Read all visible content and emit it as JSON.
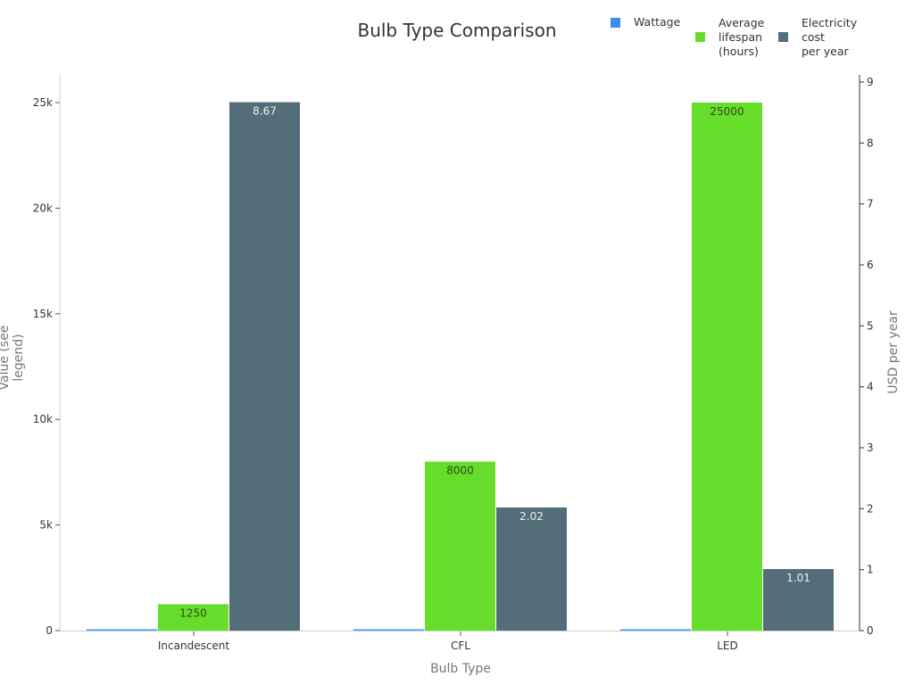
{
  "chart_data": {
    "type": "bar",
    "title": "Bulb Type Comparison",
    "categories": [
      "Incandescent",
      "CFL",
      "LED"
    ],
    "xlabel": "Bulb Type",
    "ylabel": "Value (see legend)",
    "y2label": "USD per year",
    "ylim": [
      0,
      26300
    ],
    "y2lim": [
      0,
      9.1
    ],
    "yticks": [
      "0",
      "5k",
      "10k",
      "15k",
      "20k",
      "25k"
    ],
    "y2ticks": [
      "0",
      "1",
      "2",
      "3",
      "4",
      "5",
      "6",
      "7",
      "8",
      "9"
    ],
    "legend_position": "top-right",
    "grid": false,
    "series": [
      {
        "name": "Wattage",
        "axis": "left",
        "color": "#3a8ef0",
        "values": [
          60,
          14,
          9
        ],
        "labels": [
          "",
          "",
          ""
        ]
      },
      {
        "name": "Average lifespan (hours)",
        "axis": "left",
        "color": "#66dd2a",
        "values": [
          1250,
          8000,
          25000
        ],
        "labels": [
          "1250",
          "8000",
          "25000"
        ]
      },
      {
        "name": "Electricity cost per year",
        "axis": "right",
        "color": "#546e79",
        "values": [
          8.67,
          2.02,
          1.01
        ],
        "labels": [
          "8.67",
          "2.02",
          "1.01"
        ]
      }
    ]
  },
  "legend": [
    {
      "label": "Wattage",
      "color": "#3a8ef0"
    },
    {
      "label": "Average\nlifespan\n(hours)",
      "color": "#66dd2a"
    },
    {
      "label": "Electricity\ncost\nper year",
      "color": "#546e79"
    }
  ]
}
